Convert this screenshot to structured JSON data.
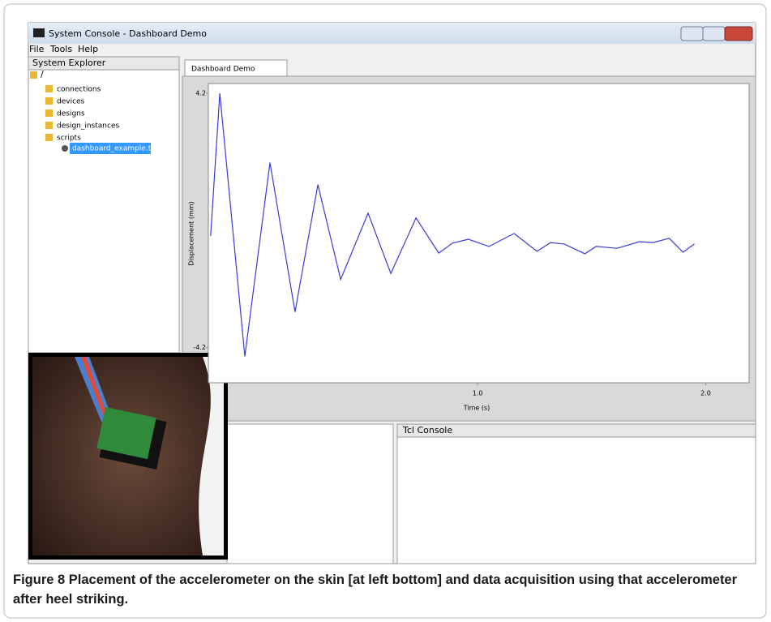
{
  "window": {
    "title": "System Console - Dashboard Demo",
    "menu": [
      "File",
      "Tools",
      "Help"
    ]
  },
  "explorer": {
    "title": "System Explorer",
    "items": [
      "/",
      "connections",
      "devices",
      "designs",
      "design_instances",
      "scripts",
      "dashboard_example.tcl"
    ]
  },
  "tab": "Dashboard Demo",
  "chart_data": {
    "type": "line",
    "xlabel": "Time (s)",
    "ylabel": "Displacement (mm)",
    "x": [
      -0.17,
      -0.13,
      -0.02,
      0.09,
      0.2,
      0.3,
      0.4,
      0.52,
      0.62,
      0.73,
      0.83,
      0.89,
      0.96,
      1.05,
      1.16,
      1.26,
      1.32,
      1.38,
      1.47,
      1.52,
      1.61,
      1.71,
      1.77,
      1.84,
      1.9,
      1.95
    ],
    "values": [
      -0.51,
      4.2,
      -4.49,
      1.91,
      -3.02,
      1.18,
      -1.95,
      0.24,
      -1.75,
      0.08,
      -1.08,
      -0.75,
      -0.62,
      -0.86,
      -0.43,
      -1.02,
      -0.73,
      -0.78,
      -1.1,
      -0.86,
      -0.92,
      -0.7,
      -0.73,
      -0.59,
      -1.05,
      -0.78
    ],
    "color": "#3a3ad8",
    "xlim": [
      -0.18,
      2.19
    ],
    "ylim": [
      -5.36,
      4.52
    ],
    "xticks": [
      {
        "value": 1,
        "label": "1.0"
      },
      {
        "value": 2,
        "label": "2.0"
      }
    ],
    "yticks": [
      -4.2,
      4.2
    ],
    "grid": false
  },
  "console": {
    "title": "Tcl Console"
  },
  "caption": "Figure 8 Placement of the accelerometer on the skin [at left bottom] and data acquisition using that accelerometer after heel striking."
}
